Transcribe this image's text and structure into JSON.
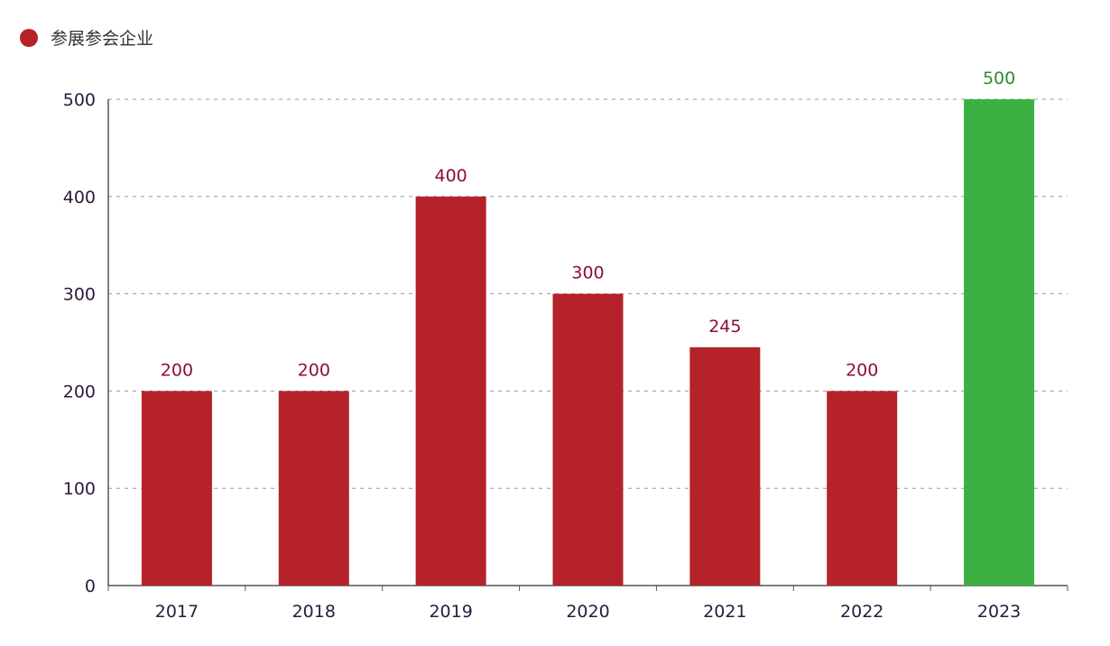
{
  "legend": {
    "label": "参展参会企业",
    "color": "#b5222a"
  },
  "chart_data": {
    "type": "bar",
    "categories": [
      "2017",
      "2018",
      "2019",
      "2020",
      "2021",
      "2022",
      "2023"
    ],
    "values": [
      200,
      200,
      400,
      300,
      245,
      200,
      500
    ],
    "bar_colors": [
      "#b5222a",
      "#b5222a",
      "#b5222a",
      "#b5222a",
      "#b5222a",
      "#b5222a",
      "#3cb043"
    ],
    "label_colors": [
      "#8b0f3a",
      "#8b0f3a",
      "#8b0f3a",
      "#8b0f3a",
      "#8b0f3a",
      "#8b0f3a",
      "#2e8b2e"
    ],
    "series": [
      {
        "name": "参展参会企业",
        "values": [
          200,
          200,
          400,
          300,
          245,
          200,
          500
        ]
      }
    ],
    "ylim": [
      0,
      500
    ],
    "yticks": [
      0,
      100,
      200,
      300,
      400,
      500
    ],
    "grid": true,
    "legend_position": "top-left",
    "title": "",
    "xlabel": "",
    "ylabel": ""
  }
}
